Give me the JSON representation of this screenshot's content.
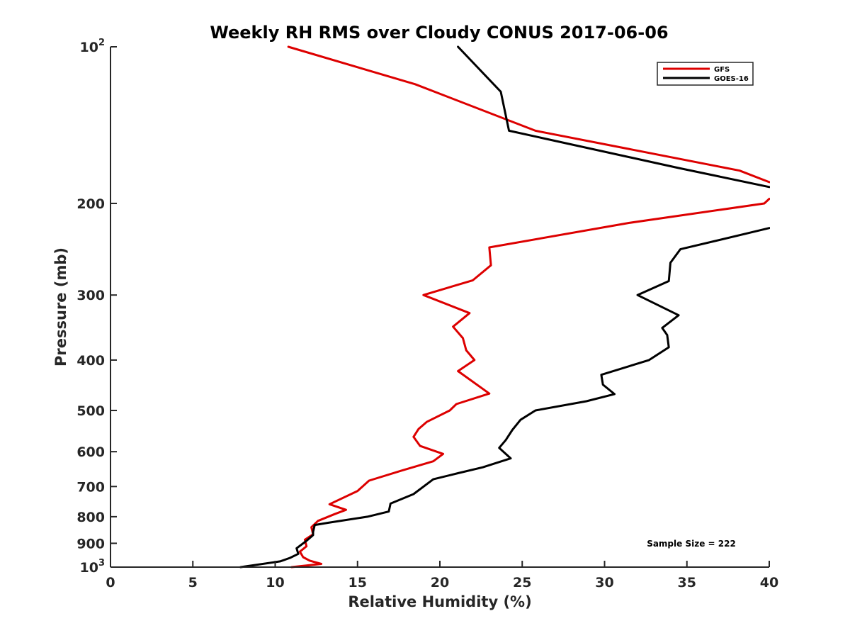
{
  "chart_data": {
    "type": "line",
    "title": "Weekly RH RMS over Cloudy CONUS 2017-06-06",
    "xlabel": "Relative Humidity (%)",
    "ylabel": "Pressure (mb)",
    "xlim": [
      0,
      40
    ],
    "ylim": [
      100,
      1000
    ],
    "y_scale": "log",
    "y_reversed": true,
    "grid": false,
    "legend_position": "top-right",
    "x_ticks": [
      "0",
      "5",
      "10",
      "15",
      "20",
      "25",
      "30",
      "35",
      "40"
    ],
    "x_tick_values": [
      0,
      5,
      10,
      15,
      20,
      25,
      30,
      35,
      40
    ],
    "y_ticks": [
      {
        "value": 100,
        "base": "10",
        "exp": "2"
      },
      {
        "value": 200,
        "label": "200"
      },
      {
        "value": 300,
        "label": "300"
      },
      {
        "value": 400,
        "label": "400"
      },
      {
        "value": 500,
        "label": "500"
      },
      {
        "value": 600,
        "label": "600"
      },
      {
        "value": 700,
        "label": "700"
      },
      {
        "value": 800,
        "label": "800"
      },
      {
        "value": 900,
        "label": "900"
      },
      {
        "value": 1000,
        "base": "10",
        "exp": "3"
      }
    ],
    "annotation": "Sample Size = 222",
    "series": [
      {
        "name": "GFS",
        "color": "#dd0000",
        "segments": [
          [
            [
              10.8,
              100
            ],
            [
              18.5,
              118
            ],
            [
              25.8,
              145
            ],
            [
              38.2,
              173
            ],
            [
              40.0,
              182
            ]
          ],
          [
            [
              40.0,
              196
            ],
            [
              39.7,
              200
            ],
            [
              31.5,
              218
            ],
            [
              23.0,
              243
            ],
            [
              23.1,
              263
            ],
            [
              22.0,
              281
            ],
            [
              19.0,
              300
            ],
            [
              21.8,
              325
            ],
            [
              20.8,
              345
            ],
            [
              21.4,
              363
            ],
            [
              21.6,
              383
            ],
            [
              22.1,
              400
            ],
            [
              21.1,
              420
            ],
            [
              23.0,
              464
            ],
            [
              21.0,
              486
            ],
            [
              20.6,
              500
            ],
            [
              19.2,
              526
            ],
            [
              18.7,
              543
            ],
            [
              18.4,
              562
            ],
            [
              18.8,
              585
            ],
            [
              20.2,
              606
            ],
            [
              19.6,
              626
            ],
            [
              17.7,
              652
            ],
            [
              15.7,
              682
            ],
            [
              15.0,
              714
            ],
            [
              13.3,
              757
            ],
            [
              14.3,
              776
            ],
            [
              13.6,
              791
            ],
            [
              12.6,
              815
            ],
            [
              12.2,
              838
            ],
            [
              12.3,
              865
            ],
            [
              11.8,
              886
            ],
            [
              11.9,
              912
            ],
            [
              11.5,
              934
            ],
            [
              11.7,
              957
            ],
            [
              12.1,
              972
            ],
            [
              12.8,
              986
            ],
            [
              11.0,
              1000
            ]
          ]
        ]
      },
      {
        "name": "GOES-16",
        "color": "#000000",
        "segments": [
          [
            [
              21.1,
              100
            ],
            [
              23.7,
              122
            ],
            [
              24.2,
              145
            ],
            [
              34.5,
              171
            ],
            [
              40.0,
              186
            ]
          ],
          [
            [
              40.0,
              223
            ],
            [
              38.5,
              229
            ],
            [
              34.6,
              245
            ],
            [
              34.0,
              260
            ],
            [
              33.9,
              282
            ],
            [
              32.0,
              300
            ],
            [
              34.5,
              328
            ],
            [
              33.5,
              347
            ],
            [
              33.8,
              358
            ],
            [
              33.9,
              378
            ],
            [
              32.7,
              400
            ],
            [
              29.8,
              427
            ],
            [
              29.9,
              446
            ],
            [
              30.6,
              465
            ],
            [
              28.9,
              480
            ],
            [
              25.8,
              500
            ],
            [
              24.9,
              521
            ],
            [
              24.4,
              545
            ],
            [
              24.0,
              570
            ],
            [
              23.6,
              590
            ],
            [
              24.3,
              618
            ],
            [
              22.6,
              643
            ],
            [
              21.1,
              660
            ],
            [
              19.6,
              678
            ],
            [
              18.4,
              724
            ],
            [
              17.0,
              755
            ],
            [
              16.9,
              782
            ],
            [
              15.6,
              800
            ],
            [
              13.2,
              822
            ],
            [
              12.4,
              830
            ],
            [
              12.3,
              856
            ],
            [
              12.3,
              868
            ],
            [
              11.9,
              890
            ],
            [
              11.3,
              920
            ],
            [
              11.4,
              943
            ],
            [
              10.9,
              960
            ],
            [
              10.3,
              975
            ],
            [
              7.9,
              1000
            ]
          ]
        ]
      }
    ]
  }
}
